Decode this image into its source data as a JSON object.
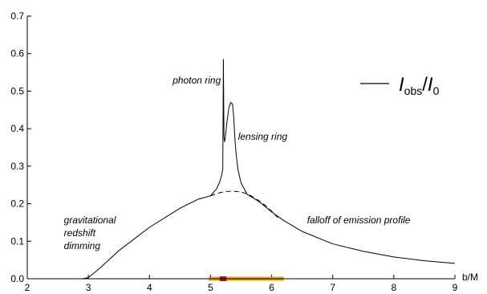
{
  "chart_data": {
    "type": "line",
    "title": "",
    "xlabel": "b/M",
    "ylabel": "",
    "xlim": [
      2,
      9
    ],
    "ylim": [
      0,
      0.7
    ],
    "x_ticks": [
      2,
      3,
      4,
      5,
      6,
      7,
      8,
      9
    ],
    "y_ticks": [
      0.0,
      0.1,
      0.2,
      0.3,
      0.4,
      0.5,
      0.6,
      0.7
    ],
    "y_tick_format": 1,
    "grid": false,
    "legend": {
      "placement": "top-right",
      "entries": [
        {
          "main": "I",
          "sub1": "obs",
          "slash": "/",
          "main2": "I",
          "sub2": "0"
        }
      ]
    },
    "series": [
      {
        "style": "solid",
        "x": [
          2.0,
          2.9,
          3.0,
          3.2,
          3.5,
          4.0,
          4.5,
          4.8,
          5.0,
          5.1,
          5.15,
          5.18,
          5.2,
          5.21,
          5.22,
          5.23,
          5.24,
          5.27,
          5.3,
          5.33,
          5.36,
          5.38,
          5.4,
          5.42,
          5.45,
          5.5,
          5.6,
          5.8,
          6.0,
          6.2,
          6.5,
          7.0,
          7.5,
          8.0,
          8.5,
          9.0
        ],
        "y": [
          0.0,
          0.0,
          0.003,
          0.03,
          0.075,
          0.137,
          0.188,
          0.212,
          0.221,
          0.24,
          0.258,
          0.275,
          0.29,
          0.585,
          0.375,
          0.365,
          0.375,
          0.42,
          0.455,
          0.47,
          0.465,
          0.43,
          0.37,
          0.33,
          0.29,
          0.255,
          0.225,
          0.205,
          0.178,
          0.155,
          0.126,
          0.093,
          0.073,
          0.058,
          0.048,
          0.041
        ]
      },
      {
        "style": "dashed",
        "x": [
          5.0,
          5.1,
          5.2,
          5.3,
          5.4,
          5.5,
          5.6,
          5.7,
          5.8,
          5.9,
          6.0,
          6.1
        ],
        "y": [
          0.221,
          0.227,
          0.231,
          0.233,
          0.233,
          0.231,
          0.226,
          0.218,
          0.207,
          0.195,
          0.18,
          0.163
        ]
      }
    ],
    "bands": [
      {
        "x0": 4.97,
        "x1": 6.2,
        "color": "#e8a317"
      },
      {
        "x0": 5.15,
        "x1": 5.26,
        "color": "#9b1c1c"
      }
    ],
    "annotations": [
      {
        "lines": [
          "photon ring"
        ],
        "x": 4.38,
        "y": 0.52
      },
      {
        "lines": [
          "lensing ring"
        ],
        "x": 5.45,
        "y": 0.37
      },
      {
        "lines": [
          "gravitational",
          "redshift",
          "dimming"
        ],
        "x": 2.6,
        "y": 0.148
      },
      {
        "lines": [
          "falloff of emission profile"
        ],
        "x": 6.58,
        "y": 0.148
      }
    ],
    "colors": {
      "line": "#000000",
      "axis": "#000000",
      "background": "#ffffff"
    }
  }
}
